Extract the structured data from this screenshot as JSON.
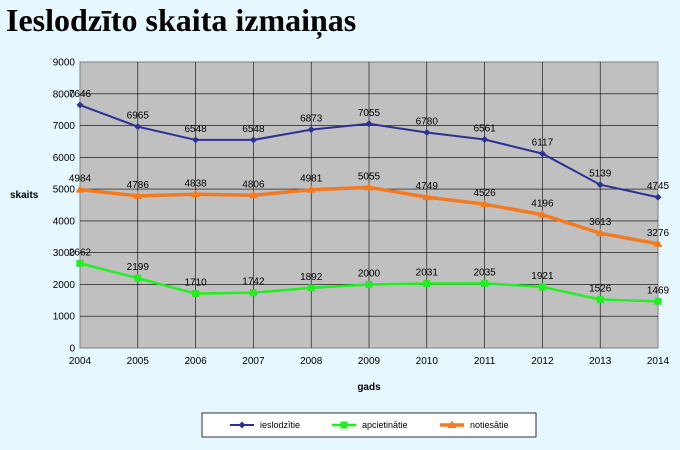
{
  "title": "Ieslodzīto skaita izmaiņas",
  "chart_data": {
    "type": "line",
    "x": [
      "2004",
      "2005",
      "2006",
      "2007",
      "2008",
      "2009",
      "2010",
      "2011",
      "2012",
      "2013",
      "2014"
    ],
    "series": [
      {
        "name": "ieslodzītie",
        "color": "#2e3192",
        "values": [
          7646,
          6965,
          6548,
          6548,
          6873,
          7055,
          6780,
          6561,
          6117,
          5139,
          4745
        ]
      },
      {
        "name": "apcietinātie",
        "color": "#22ee22",
        "values": [
          2662,
          2199,
          1710,
          1742,
          1892,
          2000,
          2031,
          2035,
          1921,
          1526,
          1469
        ]
      },
      {
        "name": "notiesātie",
        "color": "#f47a20",
        "values": [
          4984,
          4786,
          4838,
          4806,
          4981,
          5055,
          4749,
          4526,
          4196,
          3613,
          3276
        ]
      }
    ],
    "xlabel": "gads",
    "ylabel": "skaits",
    "ylim": [
      0,
      9000
    ],
    "yticks": [
      0,
      1000,
      2000,
      3000,
      4000,
      5000,
      6000,
      7000,
      8000,
      9000
    ],
    "plot_background": "#c0c0c0",
    "grid": true,
    "legend_position": "bottom"
  }
}
